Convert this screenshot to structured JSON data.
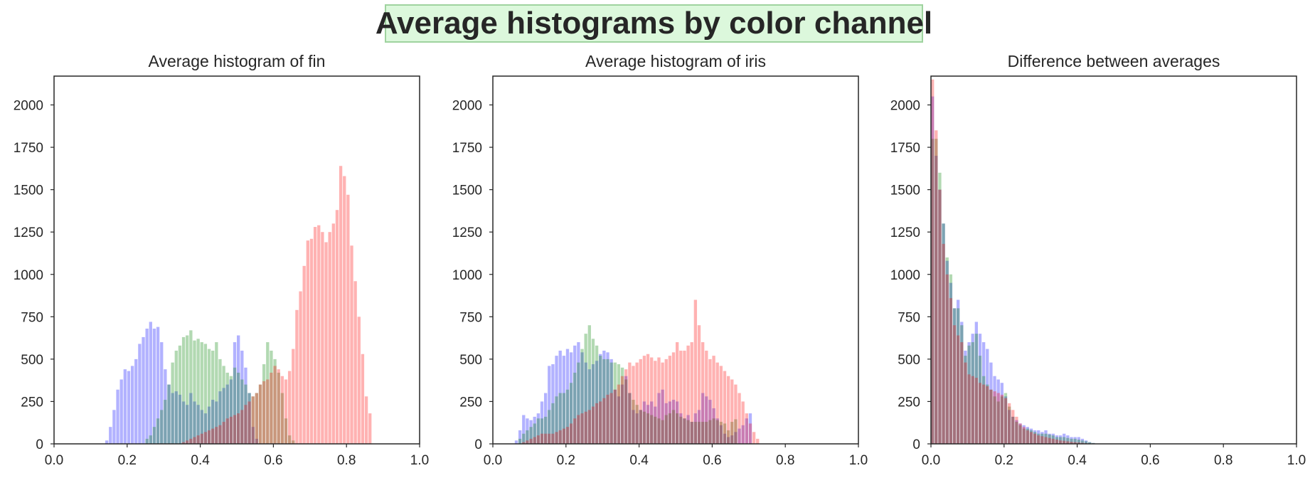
{
  "figure": {
    "suptitle": "Average histograms by color channel",
    "suptitle_bg": "#dcf8dc",
    "suptitle_border": "#9fd39f"
  },
  "chart_data": [
    {
      "type": "bar",
      "title": "Average histogram of fin",
      "xlabel": "",
      "ylabel": "",
      "xlim": [
        0.0,
        1.0
      ],
      "ylim": [
        0,
        2170
      ],
      "xticks": [
        "0.0",
        "0.2",
        "0.4",
        "0.6",
        "0.8",
        "1.0"
      ],
      "yticks": [
        "0",
        "250",
        "500",
        "750",
        "1000",
        "1250",
        "1500",
        "1750",
        "2000"
      ],
      "grid": false,
      "bin_width": 0.01,
      "series": [
        {
          "channel": "blue",
          "color": "#0000ff",
          "alpha": 0.3,
          "x_start": 0.14,
          "values": [
            20,
            100,
            200,
            320,
            380,
            440,
            430,
            460,
            500,
            590,
            630,
            680,
            720,
            680,
            690,
            600,
            440,
            350,
            300,
            310,
            290,
            250,
            230,
            300,
            250,
            230,
            200,
            180,
            220,
            260,
            250,
            310,
            330,
            350,
            380,
            600,
            640,
            550,
            450,
            300,
            100,
            30
          ]
        },
        {
          "channel": "green",
          "color": "#008000",
          "alpha": 0.3,
          "x_start": 0.25,
          "values": [
            30,
            50,
            100,
            150,
            200,
            260,
            350,
            480,
            550,
            580,
            630,
            640,
            670,
            610,
            620,
            600,
            590,
            560,
            550,
            600,
            500,
            460,
            420,
            400,
            450,
            420,
            380,
            350,
            300,
            280,
            300,
            350,
            470,
            600,
            550,
            500,
            420,
            300,
            150,
            50,
            20
          ]
        },
        {
          "channel": "red",
          "color": "#ff0000",
          "alpha": 0.3,
          "x_start": 0.35,
          "values": [
            10,
            20,
            30,
            40,
            50,
            60,
            70,
            80,
            90,
            100,
            110,
            130,
            150,
            160,
            170,
            180,
            200,
            230,
            250,
            280,
            300,
            350,
            370,
            380,
            420,
            460,
            440,
            400,
            380,
            430,
            560,
            790,
            900,
            1050,
            1200,
            1210,
            1280,
            1290,
            1250,
            1190,
            1250,
            1300,
            1380,
            1640,
            1580,
            1470,
            1170,
            960,
            750,
            530,
            280,
            180
          ]
        }
      ]
    },
    {
      "type": "bar",
      "title": "Average histogram of iris",
      "xlabel": "",
      "ylabel": "",
      "xlim": [
        0.0,
        1.0
      ],
      "ylim": [
        0,
        2170
      ],
      "xticks": [
        "0.0",
        "0.2",
        "0.4",
        "0.6",
        "0.8",
        "1.0"
      ],
      "yticks": [
        "0",
        "250",
        "500",
        "750",
        "1000",
        "1250",
        "1500",
        "1750",
        "2000"
      ],
      "grid": false,
      "bin_width": 0.01,
      "series": [
        {
          "channel": "blue",
          "color": "#0000ff",
          "alpha": 0.3,
          "x_start": 0.06,
          "values": [
            20,
            80,
            170,
            150,
            140,
            160,
            180,
            250,
            300,
            460,
            470,
            520,
            550,
            520,
            560,
            540,
            580,
            600,
            540,
            480,
            440,
            470,
            490,
            530,
            550,
            540,
            500,
            320,
            280,
            350,
            400,
            300,
            200,
            180,
            200,
            250,
            230,
            250,
            220,
            300,
            320,
            240,
            250,
            260,
            250,
            180,
            150,
            170,
            130,
            180,
            200,
            300,
            280,
            260,
            210,
            150,
            110,
            60,
            40,
            50,
            70,
            90,
            110,
            150,
            180
          ]
        },
        {
          "channel": "green",
          "color": "#008000",
          "alpha": 0.3,
          "x_start": 0.07,
          "values": [
            30,
            60,
            80,
            100,
            120,
            150,
            150,
            160,
            200,
            240,
            280,
            300,
            300,
            320,
            360,
            420,
            480,
            560,
            650,
            700,
            620,
            580,
            520,
            500,
            500,
            480,
            480,
            470,
            450,
            380,
            300,
            260,
            230,
            200,
            190,
            180,
            170,
            160,
            150,
            140,
            170,
            180,
            200,
            180,
            160,
            150,
            140,
            130,
            130,
            130,
            130,
            130,
            140,
            150,
            140,
            130,
            120,
            80,
            130,
            145
          ]
        },
        {
          "channel": "red",
          "color": "#ff0000",
          "alpha": 0.3,
          "x_start": 0.08,
          "values": [
            10,
            20,
            30,
            40,
            50,
            60,
            60,
            60,
            60,
            70,
            80,
            90,
            100,
            120,
            150,
            170,
            180,
            190,
            200,
            220,
            240,
            250,
            270,
            290,
            300,
            320,
            350,
            400,
            440,
            480,
            460,
            480,
            500,
            520,
            530,
            510,
            490,
            510,
            480,
            500,
            520,
            540,
            600,
            550,
            550,
            580,
            600,
            850,
            700,
            600,
            550,
            500,
            520,
            480,
            460,
            430,
            400,
            380,
            350,
            300,
            250,
            180,
            120,
            70,
            30
          ]
        }
      ]
    },
    {
      "type": "bar",
      "title": "Difference between averages",
      "xlabel": "",
      "ylabel": "",
      "xlim": [
        0.0,
        1.0
      ],
      "ylim": [
        0,
        2170
      ],
      "xticks": [
        "0.0",
        "0.2",
        "0.4",
        "0.6",
        "0.8",
        "1.0"
      ],
      "yticks": [
        "0",
        "250",
        "500",
        "750",
        "1000",
        "1250",
        "1500",
        "1750",
        "2000"
      ],
      "grid": false,
      "bin_width": 0.01,
      "series": [
        {
          "channel": "blue",
          "color": "#0000ff",
          "alpha": 0.3,
          "x_start": 0.0,
          "values": [
            2050,
            1700,
            1500,
            1300,
            1080,
            950,
            800,
            850,
            720,
            550,
            600,
            650,
            720,
            650,
            600,
            560,
            480,
            400,
            380,
            360,
            280,
            200,
            160,
            140,
            120,
            110,
            100,
            90,
            80,
            80,
            70,
            80,
            60,
            60,
            50,
            50,
            60,
            50,
            40,
            40,
            40,
            30,
            20,
            10,
            5
          ]
        },
        {
          "channel": "green",
          "color": "#008000",
          "alpha": 0.3,
          "x_start": 0.0,
          "values": [
            1800,
            1800,
            1600,
            1300,
            1100,
            1000,
            800,
            800,
            700,
            520,
            580,
            600,
            650,
            520,
            400,
            350,
            320,
            280,
            250,
            280,
            300,
            220,
            160,
            130,
            110,
            90,
            90,
            80,
            70,
            60,
            60,
            60,
            55,
            50,
            40,
            40,
            40,
            35,
            30,
            30,
            25,
            20,
            15,
            10,
            5
          ]
        },
        {
          "channel": "red",
          "color": "#ff0000",
          "alpha": 0.3,
          "x_start": 0.0,
          "values": [
            2150,
            1850,
            1500,
            1180,
            1000,
            860,
            700,
            640,
            600,
            480,
            410,
            400,
            390,
            360,
            350,
            340,
            320,
            310,
            300,
            290,
            270,
            240,
            200,
            160,
            120,
            100,
            80,
            70,
            60,
            50,
            45,
            40,
            35,
            30,
            25,
            20,
            18,
            15,
            12,
            10,
            8,
            6,
            4,
            2,
            1
          ]
        }
      ]
    }
  ]
}
